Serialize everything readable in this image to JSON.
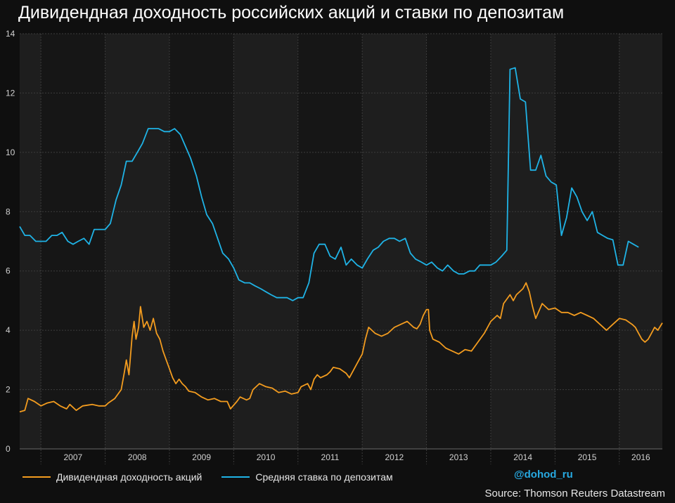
{
  "title": "Дивидендная доходность российских акций и ставки по депозитам",
  "handle": "@dohod_ru",
  "source": "Source: Thomson Reuters Datastream",
  "colors": {
    "dividend": "#f39c1f",
    "deposit": "#1fb3e6",
    "background": "#0f0f0f",
    "band_light": "#1e1e1e",
    "band_dark": "#161616",
    "accent_handle": "#27a9e1"
  },
  "chart_data": {
    "type": "line",
    "ylim": [
      0,
      14
    ],
    "yticks": [
      "0",
      "2",
      "4",
      "6",
      "8",
      "10",
      "12",
      "14"
    ],
    "xlim": [
      2006.67,
      2016.67
    ],
    "years": [
      "2007",
      "2008",
      "2009",
      "2010",
      "2011",
      "2012",
      "2013",
      "2014",
      "2015",
      "2016"
    ],
    "grid": true,
    "legend_position": "bottom",
    "series": [
      {
        "name": "Дивидендная доходность акций",
        "key": "dividend",
        "points": [
          [
            2006.67,
            1.25
          ],
          [
            2006.75,
            1.3
          ],
          [
            2006.8,
            1.7
          ],
          [
            2006.9,
            1.6
          ],
          [
            2007.0,
            1.45
          ],
          [
            2007.1,
            1.55
          ],
          [
            2007.2,
            1.6
          ],
          [
            2007.3,
            1.45
          ],
          [
            2007.4,
            1.35
          ],
          [
            2007.45,
            1.5
          ],
          [
            2007.55,
            1.3
          ],
          [
            2007.65,
            1.45
          ],
          [
            2007.8,
            1.5
          ],
          [
            2007.9,
            1.45
          ],
          [
            2008.0,
            1.45
          ],
          [
            2008.05,
            1.55
          ],
          [
            2008.15,
            1.7
          ],
          [
            2008.25,
            2.0
          ],
          [
            2008.3,
            2.6
          ],
          [
            2008.33,
            3.0
          ],
          [
            2008.37,
            2.5
          ],
          [
            2008.42,
            3.8
          ],
          [
            2008.45,
            4.3
          ],
          [
            2008.48,
            3.7
          ],
          [
            2008.52,
            4.1
          ],
          [
            2008.55,
            4.8
          ],
          [
            2008.6,
            4.1
          ],
          [
            2008.65,
            4.3
          ],
          [
            2008.7,
            4.0
          ],
          [
            2008.75,
            4.4
          ],
          [
            2008.8,
            3.9
          ],
          [
            2008.85,
            3.7
          ],
          [
            2008.9,
            3.3
          ],
          [
            2008.95,
            3.0
          ],
          [
            2009.0,
            2.7
          ],
          [
            2009.05,
            2.4
          ],
          [
            2009.1,
            2.2
          ],
          [
            2009.15,
            2.35
          ],
          [
            2009.2,
            2.2
          ],
          [
            2009.25,
            2.1
          ],
          [
            2009.3,
            1.95
          ],
          [
            2009.4,
            1.9
          ],
          [
            2009.5,
            1.75
          ],
          [
            2009.6,
            1.65
          ],
          [
            2009.7,
            1.7
          ],
          [
            2009.8,
            1.6
          ],
          [
            2009.9,
            1.6
          ],
          [
            2009.95,
            1.35
          ],
          [
            2010.05,
            1.6
          ],
          [
            2010.1,
            1.75
          ],
          [
            2010.2,
            1.65
          ],
          [
            2010.25,
            1.7
          ],
          [
            2010.3,
            2.0
          ],
          [
            2010.4,
            2.2
          ],
          [
            2010.5,
            2.1
          ],
          [
            2010.6,
            2.05
          ],
          [
            2010.7,
            1.9
          ],
          [
            2010.8,
            1.95
          ],
          [
            2010.9,
            1.85
          ],
          [
            2011.0,
            1.9
          ],
          [
            2011.05,
            2.1
          ],
          [
            2011.15,
            2.2
          ],
          [
            2011.2,
            2.0
          ],
          [
            2011.25,
            2.35
          ],
          [
            2011.3,
            2.5
          ],
          [
            2011.35,
            2.4
          ],
          [
            2011.45,
            2.5
          ],
          [
            2011.5,
            2.6
          ],
          [
            2011.55,
            2.75
          ],
          [
            2011.65,
            2.7
          ],
          [
            2011.75,
            2.55
          ],
          [
            2011.8,
            2.4
          ],
          [
            2011.9,
            2.8
          ],
          [
            2012.0,
            3.2
          ],
          [
            2012.05,
            3.7
          ],
          [
            2012.1,
            4.1
          ],
          [
            2012.2,
            3.9
          ],
          [
            2012.3,
            3.8
          ],
          [
            2012.4,
            3.9
          ],
          [
            2012.5,
            4.1
          ],
          [
            2012.6,
            4.2
          ],
          [
            2012.7,
            4.3
          ],
          [
            2012.8,
            4.1
          ],
          [
            2012.85,
            4.05
          ],
          [
            2012.9,
            4.2
          ],
          [
            2012.95,
            4.5
          ],
          [
            2013.0,
            4.7
          ],
          [
            2013.03,
            4.7
          ],
          [
            2013.05,
            4.0
          ],
          [
            2013.1,
            3.7
          ],
          [
            2013.2,
            3.6
          ],
          [
            2013.3,
            3.4
          ],
          [
            2013.4,
            3.3
          ],
          [
            2013.5,
            3.2
          ],
          [
            2013.6,
            3.35
          ],
          [
            2013.7,
            3.3
          ],
          [
            2013.8,
            3.6
          ],
          [
            2013.9,
            3.9
          ],
          [
            2014.0,
            4.3
          ],
          [
            2014.1,
            4.5
          ],
          [
            2014.15,
            4.4
          ],
          [
            2014.2,
            4.9
          ],
          [
            2014.3,
            5.2
          ],
          [
            2014.35,
            5.0
          ],
          [
            2014.4,
            5.2
          ],
          [
            2014.5,
            5.4
          ],
          [
            2014.55,
            5.6
          ],
          [
            2014.6,
            5.3
          ],
          [
            2014.65,
            4.8
          ],
          [
            2014.7,
            4.4
          ],
          [
            2014.8,
            4.9
          ],
          [
            2014.9,
            4.7
          ],
          [
            2015.0,
            4.75
          ],
          [
            2015.1,
            4.6
          ],
          [
            2015.2,
            4.6
          ],
          [
            2015.3,
            4.5
          ],
          [
            2015.4,
            4.6
          ],
          [
            2015.5,
            4.5
          ],
          [
            2015.6,
            4.4
          ],
          [
            2015.7,
            4.2
          ],
          [
            2015.8,
            4.0
          ],
          [
            2015.9,
            4.2
          ],
          [
            2016.0,
            4.4
          ],
          [
            2016.1,
            4.35
          ],
          [
            2016.2,
            4.2
          ],
          [
            2016.25,
            4.1
          ],
          [
            2016.3,
            3.9
          ],
          [
            2016.35,
            3.7
          ],
          [
            2016.4,
            3.6
          ],
          [
            2016.45,
            3.7
          ],
          [
            2016.5,
            3.9
          ],
          [
            2016.55,
            4.1
          ],
          [
            2016.6,
            4.0
          ],
          [
            2016.67,
            4.25
          ]
        ]
      },
      {
        "name": "Средняя ставка по депозитам",
        "key": "deposit",
        "points": [
          [
            2006.67,
            7.5
          ],
          [
            2006.75,
            7.2
          ],
          [
            2006.83,
            7.2
          ],
          [
            2006.92,
            7.0
          ],
          [
            2007.0,
            7.0
          ],
          [
            2007.08,
            7.0
          ],
          [
            2007.17,
            7.2
          ],
          [
            2007.25,
            7.2
          ],
          [
            2007.33,
            7.3
          ],
          [
            2007.42,
            7.0
          ],
          [
            2007.5,
            6.9
          ],
          [
            2007.58,
            7.0
          ],
          [
            2007.67,
            7.1
          ],
          [
            2007.75,
            6.9
          ],
          [
            2007.83,
            7.4
          ],
          [
            2007.92,
            7.4
          ],
          [
            2008.0,
            7.4
          ],
          [
            2008.08,
            7.6
          ],
          [
            2008.17,
            8.4
          ],
          [
            2008.25,
            8.9
          ],
          [
            2008.33,
            9.7
          ],
          [
            2008.42,
            9.7
          ],
          [
            2008.5,
            10.0
          ],
          [
            2008.58,
            10.3
          ],
          [
            2008.67,
            10.8
          ],
          [
            2008.75,
            10.8
          ],
          [
            2008.83,
            10.8
          ],
          [
            2008.92,
            10.7
          ],
          [
            2009.0,
            10.7
          ],
          [
            2009.08,
            10.8
          ],
          [
            2009.17,
            10.6
          ],
          [
            2009.25,
            10.2
          ],
          [
            2009.33,
            9.8
          ],
          [
            2009.42,
            9.2
          ],
          [
            2009.5,
            8.5
          ],
          [
            2009.58,
            7.9
          ],
          [
            2009.67,
            7.6
          ],
          [
            2009.75,
            7.1
          ],
          [
            2009.83,
            6.6
          ],
          [
            2009.92,
            6.4
          ],
          [
            2010.0,
            6.1
          ],
          [
            2010.08,
            5.7
          ],
          [
            2010.17,
            5.6
          ],
          [
            2010.25,
            5.6
          ],
          [
            2010.33,
            5.5
          ],
          [
            2010.42,
            5.4
          ],
          [
            2010.5,
            5.3
          ],
          [
            2010.58,
            5.2
          ],
          [
            2010.67,
            5.1
          ],
          [
            2010.75,
            5.1
          ],
          [
            2010.83,
            5.1
          ],
          [
            2010.92,
            5.0
          ],
          [
            2011.0,
            5.1
          ],
          [
            2011.08,
            5.1
          ],
          [
            2011.17,
            5.6
          ],
          [
            2011.25,
            6.6
          ],
          [
            2011.33,
            6.9
          ],
          [
            2011.42,
            6.9
          ],
          [
            2011.5,
            6.5
          ],
          [
            2011.58,
            6.4
          ],
          [
            2011.67,
            6.8
          ],
          [
            2011.75,
            6.2
          ],
          [
            2011.83,
            6.4
          ],
          [
            2011.92,
            6.2
          ],
          [
            2012.0,
            6.1
          ],
          [
            2012.08,
            6.4
          ],
          [
            2012.17,
            6.7
          ],
          [
            2012.25,
            6.8
          ],
          [
            2012.33,
            7.0
          ],
          [
            2012.42,
            7.1
          ],
          [
            2012.5,
            7.1
          ],
          [
            2012.58,
            7.0
          ],
          [
            2012.67,
            7.1
          ],
          [
            2012.75,
            6.6
          ],
          [
            2012.83,
            6.4
          ],
          [
            2012.92,
            6.3
          ],
          [
            2013.0,
            6.2
          ],
          [
            2013.08,
            6.3
          ],
          [
            2013.17,
            6.1
          ],
          [
            2013.25,
            6.0
          ],
          [
            2013.33,
            6.2
          ],
          [
            2013.42,
            6.0
          ],
          [
            2013.5,
            5.9
          ],
          [
            2013.58,
            5.9
          ],
          [
            2013.67,
            6.0
          ],
          [
            2013.75,
            6.0
          ],
          [
            2013.83,
            6.2
          ],
          [
            2013.92,
            6.2
          ],
          [
            2014.0,
            6.2
          ],
          [
            2014.08,
            6.3
          ],
          [
            2014.17,
            6.5
          ],
          [
            2014.25,
            6.7
          ],
          [
            2014.3,
            12.8
          ],
          [
            2014.38,
            12.85
          ],
          [
            2014.46,
            11.8
          ],
          [
            2014.54,
            11.7
          ],
          [
            2014.62,
            9.4
          ],
          [
            2014.7,
            9.4
          ],
          [
            2014.78,
            9.9
          ],
          [
            2014.86,
            9.2
          ],
          [
            2014.94,
            9.0
          ],
          [
            2015.02,
            8.9
          ],
          [
            2015.1,
            7.2
          ],
          [
            2015.18,
            7.8
          ],
          [
            2015.26,
            8.8
          ],
          [
            2015.34,
            8.5
          ],
          [
            2015.42,
            8.0
          ],
          [
            2015.5,
            7.7
          ],
          [
            2015.58,
            8.0
          ],
          [
            2015.66,
            7.3
          ],
          [
            2015.74,
            7.2
          ],
          [
            2015.82,
            7.1
          ],
          [
            2015.9,
            7.05
          ],
          [
            2015.98,
            6.2
          ],
          [
            2016.06,
            6.2
          ],
          [
            2016.14,
            7.0
          ],
          [
            2016.22,
            6.9
          ],
          [
            2016.3,
            6.8
          ]
        ]
      }
    ]
  }
}
